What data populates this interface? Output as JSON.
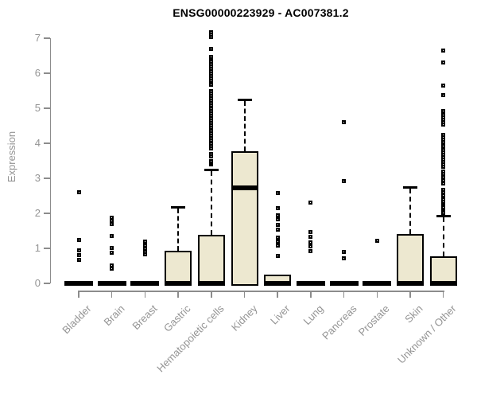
{
  "chart_data": {
    "type": "boxplot",
    "title": "ENSG00000223929 - AC007381.2",
    "ylabel": "Expression",
    "xlabel": "",
    "ylim": [
      0,
      7
    ],
    "yticks": [
      0,
      1,
      2,
      3,
      4,
      5,
      6,
      7
    ],
    "grid": false,
    "legend": "none",
    "categories": [
      "Bladder",
      "Brain",
      "Breast",
      "Gastric",
      "Hematopoietic cells",
      "Kidney",
      "Liver",
      "Lung",
      "Pancreas",
      "Prostate",
      "Skin",
      "Unknown / Other"
    ],
    "series": [
      {
        "category": "Bladder",
        "q1": 0,
        "median": 0,
        "q3": 0,
        "whisker_low": 0,
        "whisker_high": 0,
        "outliers": [
          0.66,
          0.8,
          0.95,
          1.23,
          2.61
        ]
      },
      {
        "category": "Brain",
        "q1": 0,
        "median": 0,
        "q3": 0,
        "whisker_low": 0,
        "whisker_high": 0,
        "outliers": [
          0.41,
          0.51,
          0.88,
          1.02,
          1.35,
          1.69,
          1.78,
          1.87
        ]
      },
      {
        "category": "Breast",
        "q1": 0,
        "median": 0,
        "q3": 0,
        "whisker_low": 0,
        "whisker_high": 0,
        "outliers": [
          0.82,
          0.89,
          0.98,
          1.08,
          1.2
        ]
      },
      {
        "category": "Gastric",
        "q1": 0,
        "median": 0,
        "q3": 0.93,
        "whisker_low": 0,
        "whisker_high": 2.18,
        "outliers": []
      },
      {
        "category": "Hematopoietic cells",
        "q1": 0,
        "median": 0,
        "q3": 1.38,
        "whisker_low": 0,
        "whisker_high": 3.26,
        "outliers": [
          3.39,
          3.44,
          3.49,
          3.63,
          3.7,
          3.85,
          3.93,
          4.0,
          4.08,
          4.15,
          4.22,
          4.29,
          4.36,
          4.44,
          4.51,
          4.58,
          4.65,
          4.72,
          4.79,
          4.86,
          4.93,
          5.0,
          5.07,
          5.14,
          5.21,
          5.28,
          5.35,
          5.42,
          5.48,
          5.67,
          5.78,
          5.85,
          5.92,
          5.99,
          6.06,
          6.13,
          6.2,
          6.27,
          6.34,
          6.41,
          6.46,
          6.69,
          7.03,
          7.1,
          7.16
        ]
      },
      {
        "category": "Kidney",
        "q1": 0,
        "median": 2.72,
        "q3": 3.77,
        "whisker_low": 0,
        "whisker_high": 5.25,
        "outliers": []
      },
      {
        "category": "Liver",
        "q1": 0,
        "median": 0,
        "q3": 0.26,
        "whisker_low": 0,
        "whisker_high": 0.26,
        "outliers": [
          0.78,
          1.08,
          1.2,
          1.31,
          1.54,
          1.67,
          1.82,
          1.95,
          2.14,
          2.58
        ]
      },
      {
        "category": "Lung",
        "q1": 0,
        "median": 0,
        "q3": 0,
        "whisker_low": 0,
        "whisker_high": 0,
        "outliers": [
          0.93,
          1.05,
          1.18,
          1.32,
          1.46,
          2.31
        ]
      },
      {
        "category": "Pancreas",
        "q1": 0,
        "median": 0,
        "q3": 0,
        "whisker_low": 0,
        "whisker_high": 0,
        "outliers": [
          0.72,
          0.89,
          2.92,
          4.61
        ]
      },
      {
        "category": "Prostate",
        "q1": 0,
        "median": 0,
        "q3": 0,
        "whisker_low": 0,
        "whisker_high": 0,
        "outliers": [
          1.21
        ]
      },
      {
        "category": "Skin",
        "q1": 0,
        "median": 0,
        "q3": 1.41,
        "whisker_low": 0,
        "whisker_high": 2.75,
        "outliers": []
      },
      {
        "category": "Unknown / Other",
        "q1": 0,
        "median": 0,
        "q3": 0.78,
        "whisker_low": 0,
        "whisker_high": 1.93,
        "outliers": [
          1.97,
          2.02,
          2.07,
          2.13,
          2.18,
          2.23,
          2.29,
          2.34,
          2.39,
          2.52,
          2.6,
          2.67,
          2.86,
          2.95,
          3.04,
          3.13,
          3.2,
          3.32,
          3.4,
          3.47,
          3.54,
          3.61,
          3.68,
          3.75,
          3.81,
          3.92,
          4.04,
          4.11,
          4.18,
          4.25,
          4.53,
          4.6,
          4.67,
          4.74,
          4.8,
          4.91,
          5.38,
          5.64,
          6.31,
          6.65
        ]
      }
    ],
    "colors": {
      "box_fill": "#EDE8D0",
      "box_border": "#000000",
      "median": "#000000",
      "outlier": "#000000",
      "axis_line": "#8C8C8C",
      "tick_label": "#949494",
      "title": "#000000",
      "background": "#ffffff"
    }
  }
}
